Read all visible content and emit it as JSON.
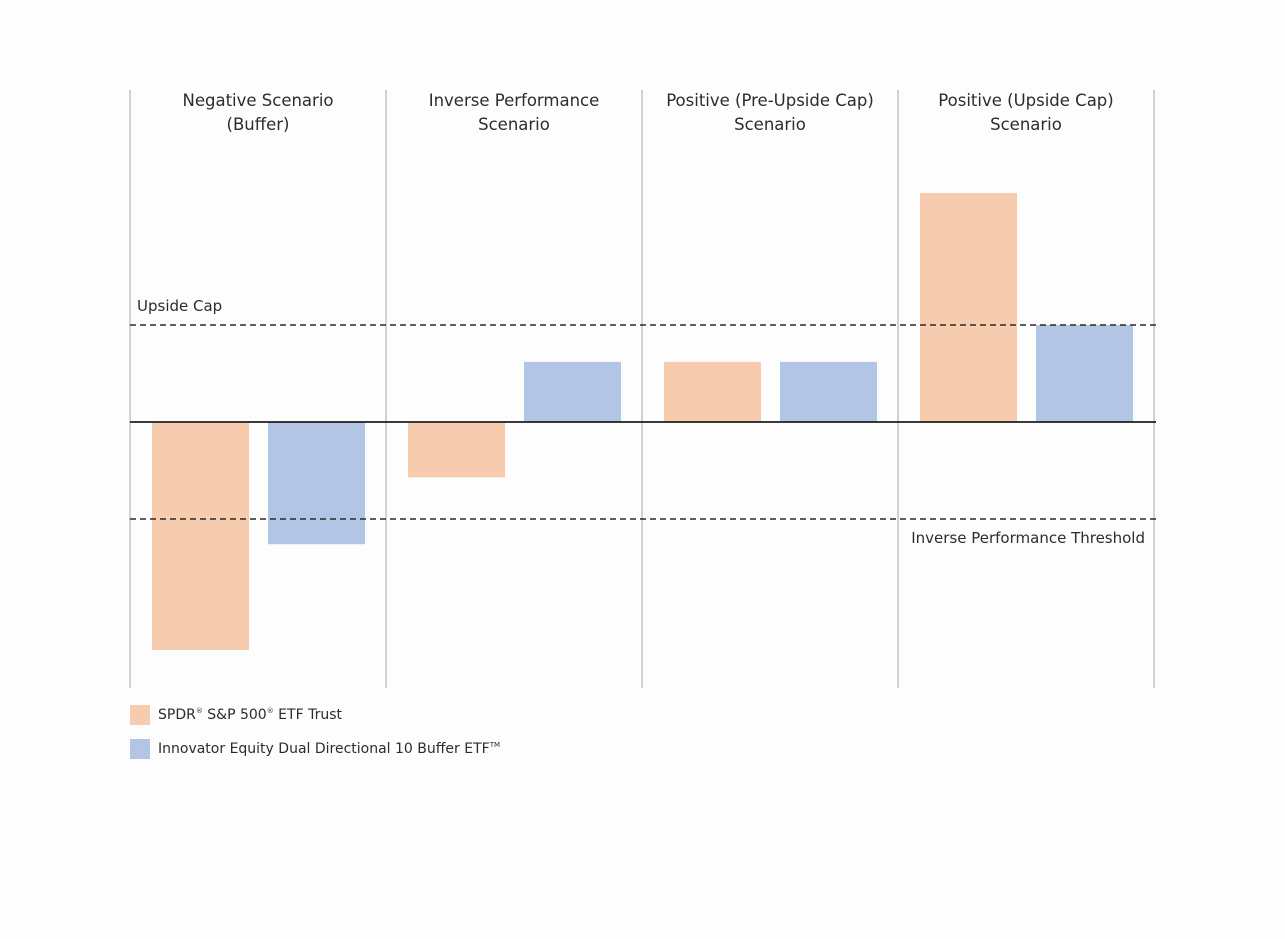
{
  "chart_data": {
    "type": "bar",
    "categories": [
      [
        "Negative Scenario",
        "(Buffer)"
      ],
      [
        "Inverse Performance",
        "Scenario"
      ],
      [
        "Positive (Pre-Upside Cap)",
        "Scenario"
      ],
      [
        "Positive (Upside Cap)",
        "Scenario"
      ]
    ],
    "series": [
      {
        "name": "SPDR® S&P 500® ETF Trust",
        "color": "#f7cbad",
        "values": [
          -2.35,
          -0.57,
          0.62,
          2.36
        ]
      },
      {
        "name": "Innovator Equity Dual Directional 10 Buffer ETF™",
        "color": "#b3c5e5",
        "values": [
          -1.26,
          0.62,
          0.62,
          1.0
        ]
      }
    ],
    "reference_lines": [
      {
        "label": "Upside Cap",
        "value": 1.0,
        "label_position": "top-left"
      },
      {
        "label": "Inverse Performance Threshold",
        "value": -1.0,
        "label_position": "bottom-right"
      }
    ],
    "ylim": [
      -2.75,
      3.4
    ],
    "grid": false,
    "legend_position": "bottom-left"
  },
  "legend": {
    "series_1": {
      "part1": "SPDR",
      "sup1": "®",
      "part2": " S&P 500",
      "sup2": "®",
      "part3": " ETF Trust"
    },
    "series_2": {
      "part1": "Innovator Equity Dual Directional 10 Buffer ETF",
      "sup1": "TM"
    }
  }
}
